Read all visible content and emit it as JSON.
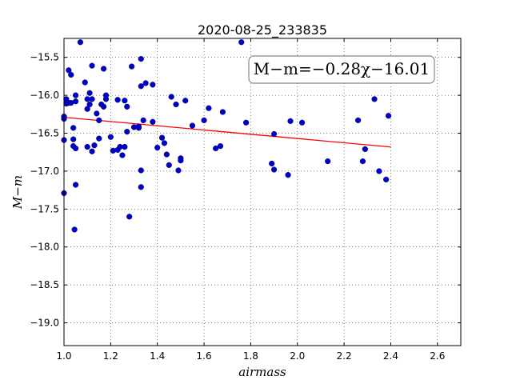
{
  "chart_data": {
    "type": "scatter",
    "title": "2020-08-25_233835",
    "xlabel": "airmass",
    "ylabel": "M−m",
    "xlim": [
      1.0,
      2.7
    ],
    "ylim": [
      -19.3,
      -15.25
    ],
    "y_inverted": true,
    "grid": true,
    "x_ticks": [
      "1.0",
      "1.2",
      "1.4",
      "1.6",
      "1.8",
      "2.0",
      "2.2",
      "2.4",
      "2.6"
    ],
    "x_tick_values": [
      1.0,
      1.2,
      1.4,
      1.6,
      1.8,
      2.0,
      2.2,
      2.4,
      2.6
    ],
    "y_ticks": [
      "−15.5",
      "−16.0",
      "−16.5",
      "−17.0",
      "−17.5",
      "−18.0",
      "−18.5",
      "−19.0"
    ],
    "y_tick_values": [
      -15.5,
      -16.0,
      -16.5,
      -17.0,
      -17.5,
      -18.0,
      -18.5,
      -19.0
    ],
    "annotation": "M−m=−0.28χ−16.01",
    "annotation_position": "top-right",
    "fit_line": {
      "slope": -0.28,
      "intercept": -16.01,
      "x_range": [
        1.0,
        2.4
      ],
      "color": "#ff0000"
    },
    "point_color": "#0000cc",
    "points": [
      [
        1.0,
        -16.31
      ],
      [
        1.0,
        -16.28
      ],
      [
        1.0,
        -16.59
      ],
      [
        1.0,
        -17.29
      ],
      [
        1.01,
        -16.05
      ],
      [
        1.01,
        -16.11
      ],
      [
        1.02,
        -16.1
      ],
      [
        1.02,
        -15.67
      ],
      [
        1.03,
        -15.73
      ],
      [
        1.03,
        -16.1
      ],
      [
        1.04,
        -16.58
      ],
      [
        1.04,
        -16.43
      ],
      [
        1.04,
        -16.67
      ],
      [
        1.05,
        -16.0
      ],
      [
        1.05,
        -16.7
      ],
      [
        1.05,
        -16.08
      ],
      [
        1.05,
        -17.18
      ],
      [
        1.045,
        -17.77
      ],
      [
        1.07,
        -15.3
      ],
      [
        1.09,
        -15.83
      ],
      [
        1.1,
        -16.18
      ],
      [
        1.1,
        -16.05
      ],
      [
        1.1,
        -16.68
      ],
      [
        1.11,
        -15.97
      ],
      [
        1.11,
        -16.12
      ],
      [
        1.12,
        -15.61
      ],
      [
        1.12,
        -16.05
      ],
      [
        1.12,
        -16.74
      ],
      [
        1.13,
        -16.66
      ],
      [
        1.14,
        -16.24
      ],
      [
        1.15,
        -16.33
      ],
      [
        1.15,
        -16.57
      ],
      [
        1.16,
        -16.12
      ],
      [
        1.17,
        -15.65
      ],
      [
        1.17,
        -16.15
      ],
      [
        1.18,
        -16.0
      ],
      [
        1.18,
        -16.05
      ],
      [
        1.2,
        -16.55
      ],
      [
        1.21,
        -16.73
      ],
      [
        1.23,
        -16.72
      ],
      [
        1.23,
        -16.06
      ],
      [
        1.24,
        -16.68
      ],
      [
        1.25,
        -16.79
      ],
      [
        1.26,
        -16.68
      ],
      [
        1.26,
        -16.07
      ],
      [
        1.27,
        -16.15
      ],
      [
        1.27,
        -16.48
      ],
      [
        1.28,
        -17.6
      ],
      [
        1.29,
        -15.62
      ],
      [
        1.3,
        -16.42
      ],
      [
        1.32,
        -16.43
      ],
      [
        1.32,
        -16.41
      ],
      [
        1.33,
        -15.52
      ],
      [
        1.33,
        -15.88
      ],
      [
        1.33,
        -16.99
      ],
      [
        1.33,
        -17.21
      ],
      [
        1.34,
        -16.33
      ],
      [
        1.35,
        -15.84
      ],
      [
        1.38,
        -16.35
      ],
      [
        1.38,
        -15.86
      ],
      [
        1.4,
        -16.69
      ],
      [
        1.42,
        -16.56
      ],
      [
        1.43,
        -16.63
      ],
      [
        1.44,
        -16.78
      ],
      [
        1.45,
        -16.92
      ],
      [
        1.46,
        -16.02
      ],
      [
        1.48,
        -16.12
      ],
      [
        1.49,
        -16.99
      ],
      [
        1.5,
        -16.83
      ],
      [
        1.5,
        -16.86
      ],
      [
        1.52,
        -16.07
      ],
      [
        1.55,
        -16.4
      ],
      [
        1.6,
        -16.33
      ],
      [
        1.62,
        -16.17
      ],
      [
        1.65,
        -16.7
      ],
      [
        1.67,
        -16.67
      ],
      [
        1.68,
        -16.22
      ],
      [
        1.76,
        -15.3
      ],
      [
        1.78,
        -16.36
      ],
      [
        1.89,
        -16.9
      ],
      [
        1.9,
        -16.98
      ],
      [
        1.9,
        -16.51
      ],
      [
        1.96,
        -17.05
      ],
      [
        1.97,
        -16.34
      ],
      [
        2.02,
        -16.36
      ],
      [
        2.13,
        -16.87
      ],
      [
        2.26,
        -16.33
      ],
      [
        2.28,
        -16.87
      ],
      [
        2.29,
        -16.71
      ],
      [
        2.33,
        -16.05
      ],
      [
        2.35,
        -17.0
      ],
      [
        2.38,
        -17.11
      ],
      [
        2.39,
        -16.27
      ]
    ]
  }
}
